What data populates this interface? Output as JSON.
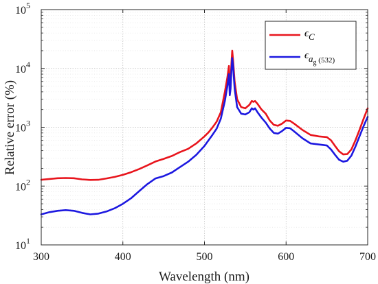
{
  "chart_data": {
    "type": "line",
    "xlabel": "Wavelength (nm)",
    "ylabel": "Relative error (%)",
    "xlim": [
      300,
      700
    ],
    "ylim": [
      10,
      100000
    ],
    "yscale": "log",
    "grid": true,
    "legend_position": "top-right",
    "x_ticks": [
      {
        "value": 300,
        "label": "300"
      },
      {
        "value": 400,
        "label": "400"
      },
      {
        "value": 500,
        "label": "500"
      },
      {
        "value": 600,
        "label": "600"
      },
      {
        "value": 700,
        "label": "700"
      }
    ],
    "y_ticks": [
      {
        "value": 10,
        "base": "10",
        "exp": "1"
      },
      {
        "value": 100,
        "base": "10",
        "exp": "2"
      },
      {
        "value": 1000,
        "base": "10",
        "exp": "3"
      },
      {
        "value": 10000,
        "base": "10",
        "exp": "4"
      },
      {
        "value": 100000,
        "base": "10",
        "exp": "5"
      }
    ],
    "series": [
      {
        "name": "εC",
        "legend_symbol": "ϵ",
        "legend_sub": "C",
        "color": "#e8141c",
        "points": [
          [
            300,
            128
          ],
          [
            310,
            132
          ],
          [
            320,
            136
          ],
          [
            330,
            137
          ],
          [
            340,
            136
          ],
          [
            350,
            130
          ],
          [
            360,
            127
          ],
          [
            370,
            128
          ],
          [
            380,
            135
          ],
          [
            390,
            143
          ],
          [
            400,
            155
          ],
          [
            410,
            172
          ],
          [
            420,
            195
          ],
          [
            430,
            225
          ],
          [
            440,
            262
          ],
          [
            450,
            290
          ],
          [
            460,
            325
          ],
          [
            470,
            378
          ],
          [
            480,
            430
          ],
          [
            490,
            530
          ],
          [
            500,
            700
          ],
          [
            505,
            820
          ],
          [
            510,
            1000
          ],
          [
            515,
            1250
          ],
          [
            520,
            1800
          ],
          [
            525,
            4000
          ],
          [
            528,
            7000
          ],
          [
            530,
            11000
          ],
          [
            531,
            4500
          ],
          [
            532,
            6000
          ],
          [
            533,
            12000
          ],
          [
            534,
            20000
          ],
          [
            535,
            14000
          ],
          [
            537,
            6000
          ],
          [
            540,
            3000
          ],
          [
            545,
            2200
          ],
          [
            550,
            2100
          ],
          [
            555,
            2400
          ],
          [
            558,
            2800
          ],
          [
            560,
            2700
          ],
          [
            562,
            2800
          ],
          [
            565,
            2500
          ],
          [
            570,
            2000
          ],
          [
            575,
            1700
          ],
          [
            580,
            1300
          ],
          [
            585,
            1100
          ],
          [
            590,
            1060
          ],
          [
            595,
            1150
          ],
          [
            600,
            1300
          ],
          [
            605,
            1280
          ],
          [
            610,
            1150
          ],
          [
            620,
            900
          ],
          [
            630,
            740
          ],
          [
            640,
            700
          ],
          [
            650,
            680
          ],
          [
            655,
            600
          ],
          [
            660,
            480
          ],
          [
            665,
            390
          ],
          [
            670,
            345
          ],
          [
            675,
            350
          ],
          [
            680,
            420
          ],
          [
            685,
            600
          ],
          [
            690,
            900
          ],
          [
            695,
            1400
          ],
          [
            700,
            2100
          ]
        ]
      },
      {
        "name": "εag(532)",
        "legend_symbol": "ϵ",
        "legend_sub": "a",
        "legend_subsub": "g",
        "legend_subtail": " (532)",
        "color": "#1c18e0",
        "points": [
          [
            300,
            33
          ],
          [
            310,
            36
          ],
          [
            320,
            38
          ],
          [
            330,
            39
          ],
          [
            340,
            38
          ],
          [
            350,
            35
          ],
          [
            360,
            33
          ],
          [
            370,
            34
          ],
          [
            380,
            37
          ],
          [
            390,
            42
          ],
          [
            400,
            50
          ],
          [
            410,
            62
          ],
          [
            420,
            82
          ],
          [
            430,
            108
          ],
          [
            440,
            135
          ],
          [
            450,
            148
          ],
          [
            460,
            170
          ],
          [
            470,
            210
          ],
          [
            480,
            260
          ],
          [
            490,
            340
          ],
          [
            500,
            480
          ],
          [
            505,
            600
          ],
          [
            510,
            750
          ],
          [
            515,
            950
          ],
          [
            520,
            1400
          ],
          [
            525,
            2800
          ],
          [
            528,
            5000
          ],
          [
            530,
            8000
          ],
          [
            531,
            3500
          ],
          [
            532,
            4500
          ],
          [
            533,
            9000
          ],
          [
            534,
            15000
          ],
          [
            535,
            11000
          ],
          [
            537,
            4500
          ],
          [
            540,
            2200
          ],
          [
            545,
            1700
          ],
          [
            550,
            1650
          ],
          [
            555,
            1800
          ],
          [
            558,
            2100
          ],
          [
            560,
            2000
          ],
          [
            562,
            2100
          ],
          [
            565,
            1800
          ],
          [
            570,
            1450
          ],
          [
            575,
            1200
          ],
          [
            580,
            950
          ],
          [
            585,
            800
          ],
          [
            590,
            780
          ],
          [
            595,
            860
          ],
          [
            600,
            980
          ],
          [
            605,
            960
          ],
          [
            610,
            850
          ],
          [
            620,
            650
          ],
          [
            630,
            530
          ],
          [
            640,
            510
          ],
          [
            650,
            490
          ],
          [
            655,
            420
          ],
          [
            660,
            340
          ],
          [
            665,
            280
          ],
          [
            670,
            260
          ],
          [
            675,
            270
          ],
          [
            680,
            330
          ],
          [
            685,
            470
          ],
          [
            690,
            700
          ],
          [
            695,
            1050
          ],
          [
            700,
            1500
          ]
        ]
      }
    ]
  }
}
